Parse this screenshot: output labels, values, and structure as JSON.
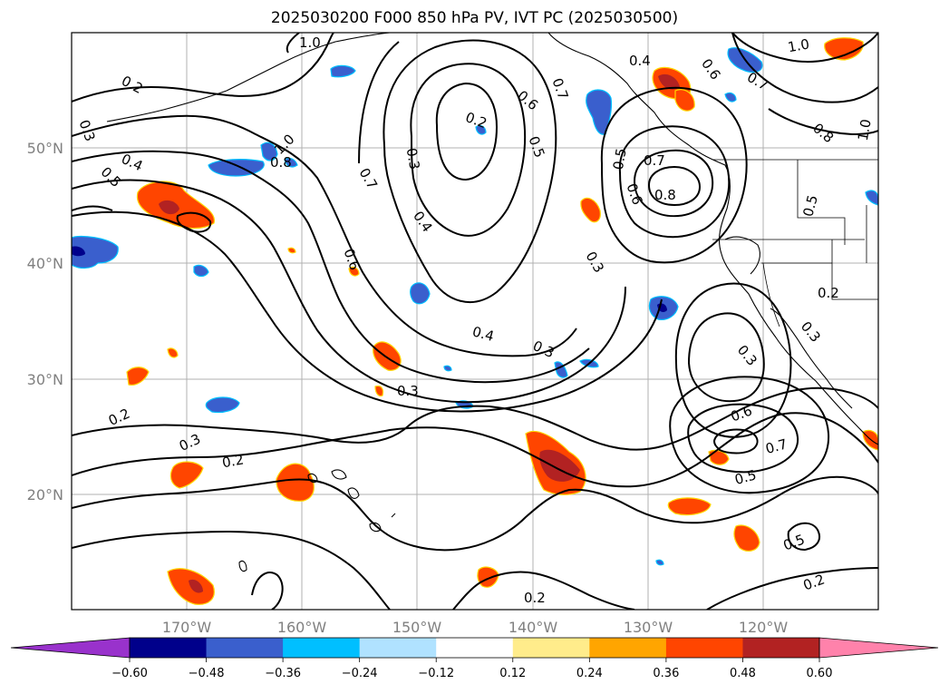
{
  "title": "2025030200 F000 850 hPa PV, IVT PC (2025030500)",
  "axes": {
    "lon_ticks": [
      "170°W",
      "160°W",
      "150°W",
      "140°W",
      "130°W",
      "120°W"
    ],
    "lat_ticks": [
      "50°N",
      "40°N",
      "30°N",
      "20°N"
    ],
    "lon_range": [
      -180,
      -110
    ],
    "lat_range": [
      10,
      60
    ],
    "grid": true
  },
  "contour_labels": [
    "1.0",
    "0.2",
    "0.3",
    "0.4",
    "0.5",
    "1.0",
    "0.8",
    "0.7",
    "0.6",
    "0.3",
    "0.4",
    "0.2",
    "0.6",
    "0.5",
    "0.7",
    "0.4",
    "0.6",
    "0.7",
    "1.0",
    "0.8",
    "1.0",
    "0.5",
    "0.7",
    "0.8",
    "0.6",
    "0.3",
    "0.5",
    "0.2",
    "0.3",
    "0.3",
    "0.4",
    "0.3",
    "0.3",
    "0.2",
    "0.3",
    "0.2",
    "0.6",
    "0.7",
    "0.5",
    "0.5",
    "0.2",
    "0.2"
  ],
  "colorbar": {
    "ticks": [
      "−0.60",
      "−0.48",
      "−0.36",
      "−0.24",
      "−0.12",
      "0.12",
      "0.24",
      "0.36",
      "0.48",
      "0.60"
    ],
    "colors": [
      "#9932cc",
      "#00008b",
      "#3a5fcd",
      "#00bfff",
      "#b0e2ff",
      "#ffffff",
      "#ffec8b",
      "#ffa500",
      "#ff4500",
      "#b22222",
      "#ff82ab"
    ]
  },
  "colors": {
    "contour": "#000000",
    "grid": "#b0b0b0",
    "coast": "#000000"
  }
}
